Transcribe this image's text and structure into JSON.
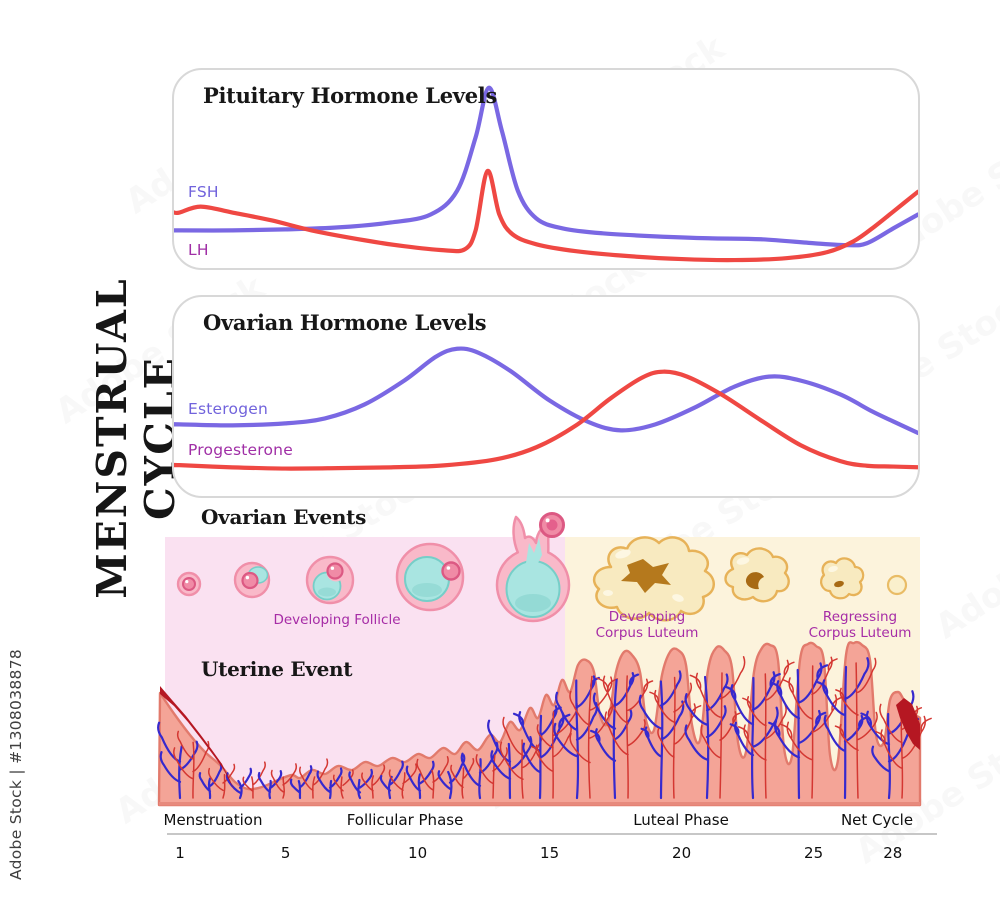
{
  "page": {
    "vertical_title": "MENSTRUAL CYCLE",
    "credit": "Adobe Stock | #1308038878",
    "watermark_text": "Adobe Stock"
  },
  "pituitary_panel": {
    "title": "Pituitary Hormone Levels",
    "fsh_label": "FSH",
    "lh_label": "LH",
    "fsh_label_color": "#7163DC",
    "lh_label_color": "#A02FA6"
  },
  "ovarian_panel": {
    "title": "Ovarian Hormone Levels",
    "estrogen_label": "Esterogen",
    "progesterone_label": "Progesterone",
    "estrogen_label_color": "#7163DC",
    "progesterone_label_color": "#A02FA6"
  },
  "events": {
    "ovarian_heading": "Ovarian Events",
    "uterine_heading": "Uterine Event",
    "developing_follicle_caption": "Developing Follicle",
    "developing_corpus_luteum_caption": "Developing\nCorpus Luteum",
    "regressing_corpus_luteum_caption": "Regressing\nCorpus Luteum",
    "caption_color": "#A62CA6",
    "follicular_bg": "#FAE1F1",
    "luteal_bg": "#FCF3DC"
  },
  "axis": {
    "phases": [
      "Menstruation",
      "Follicular Phase",
      "Luteal Phase",
      "Net Cycle"
    ],
    "days": [
      1,
      5,
      10,
      15,
      20,
      25,
      28
    ]
  },
  "chart_data": [
    {
      "type": "line",
      "title": "Pituitary Hormone Levels",
      "xlabel": "cycle day",
      "x_range": [
        1,
        28
      ],
      "y_scale": "relative hormone level (0 = low, 1 = high)",
      "grid": false,
      "legend_position": "inline-left",
      "series": [
        {
          "name": "FSH",
          "color": "#7A68E3",
          "points": [
            [
              1,
              0.19
            ],
            [
              3,
              0.19
            ],
            [
              5,
              0.195
            ],
            [
              7,
              0.205
            ],
            [
              9,
              0.23
            ],
            [
              10.5,
              0.27
            ],
            [
              11.5,
              0.39
            ],
            [
              12.2,
              0.66
            ],
            [
              12.7,
              0.91
            ],
            [
              13.2,
              0.69
            ],
            [
              13.8,
              0.39
            ],
            [
              14.5,
              0.25
            ],
            [
              15.5,
              0.2
            ],
            [
              17,
              0.175
            ],
            [
              19,
              0.16
            ],
            [
              21,
              0.15
            ],
            [
              23,
              0.145
            ],
            [
              25,
              0.125
            ],
            [
              26.3,
              0.115
            ],
            [
              27,
              0.125
            ],
            [
              28,
              0.2
            ]
          ]
        },
        {
          "name": "LH",
          "color": "#EF4843",
          "points": [
            [
              1,
              0.28
            ],
            [
              1.8,
              0.31
            ],
            [
              3,
              0.28
            ],
            [
              4.5,
              0.24
            ],
            [
              6,
              0.19
            ],
            [
              8,
              0.14
            ],
            [
              9.5,
              0.11
            ],
            [
              11,
              0.09
            ],
            [
              11.8,
              0.095
            ],
            [
              12.2,
              0.19
            ],
            [
              12.65,
              0.49
            ],
            [
              13.1,
              0.27
            ],
            [
              13.6,
              0.17
            ],
            [
              14.5,
              0.12
            ],
            [
              16,
              0.085
            ],
            [
              18,
              0.06
            ],
            [
              20,
              0.045
            ],
            [
              22,
              0.04
            ],
            [
              24,
              0.05
            ],
            [
              25.5,
              0.08
            ],
            [
              26.5,
              0.135
            ],
            [
              27.3,
              0.21
            ],
            [
              28,
              0.285
            ]
          ]
        }
      ]
    },
    {
      "type": "line",
      "title": "Ovarian Hormone Levels",
      "xlabel": "cycle day",
      "x_range": [
        1,
        28
      ],
      "y_scale": "relative hormone level (0 = low, 1 = high)",
      "grid": false,
      "legend_position": "inline-left",
      "series": [
        {
          "name": "Esterogen",
          "color": "#7A68E3",
          "points": [
            [
              1,
              0.36
            ],
            [
              3,
              0.355
            ],
            [
              5,
              0.365
            ],
            [
              6.5,
              0.39
            ],
            [
              8,
              0.46
            ],
            [
              9.5,
              0.58
            ],
            [
              10.7,
              0.7
            ],
            [
              11.5,
              0.74
            ],
            [
              12.3,
              0.72
            ],
            [
              13.5,
              0.63
            ],
            [
              15,
              0.48
            ],
            [
              16.5,
              0.37
            ],
            [
              17.7,
              0.33
            ],
            [
              19,
              0.36
            ],
            [
              20.5,
              0.445
            ],
            [
              22,
              0.55
            ],
            [
              23.3,
              0.6
            ],
            [
              24.5,
              0.58
            ],
            [
              26,
              0.51
            ],
            [
              27.2,
              0.425
            ],
            [
              28,
              0.375
            ]
          ]
        },
        {
          "name": "Progesterone",
          "color": "#EF4843",
          "points": [
            [
              1,
              0.155
            ],
            [
              3,
              0.144
            ],
            [
              5,
              0.138
            ],
            [
              7,
              0.14
            ],
            [
              9,
              0.144
            ],
            [
              11,
              0.154
            ],
            [
              13,
              0.185
            ],
            [
              14.5,
              0.245
            ],
            [
              16,
              0.355
            ],
            [
              17.3,
              0.49
            ],
            [
              18.5,
              0.595
            ],
            [
              19.3,
              0.625
            ],
            [
              20.2,
              0.6
            ],
            [
              21.5,
              0.51
            ],
            [
              23,
              0.38
            ],
            [
              24.5,
              0.255
            ],
            [
              26,
              0.175
            ],
            [
              27,
              0.152
            ],
            [
              28,
              0.148
            ]
          ]
        }
      ]
    }
  ]
}
